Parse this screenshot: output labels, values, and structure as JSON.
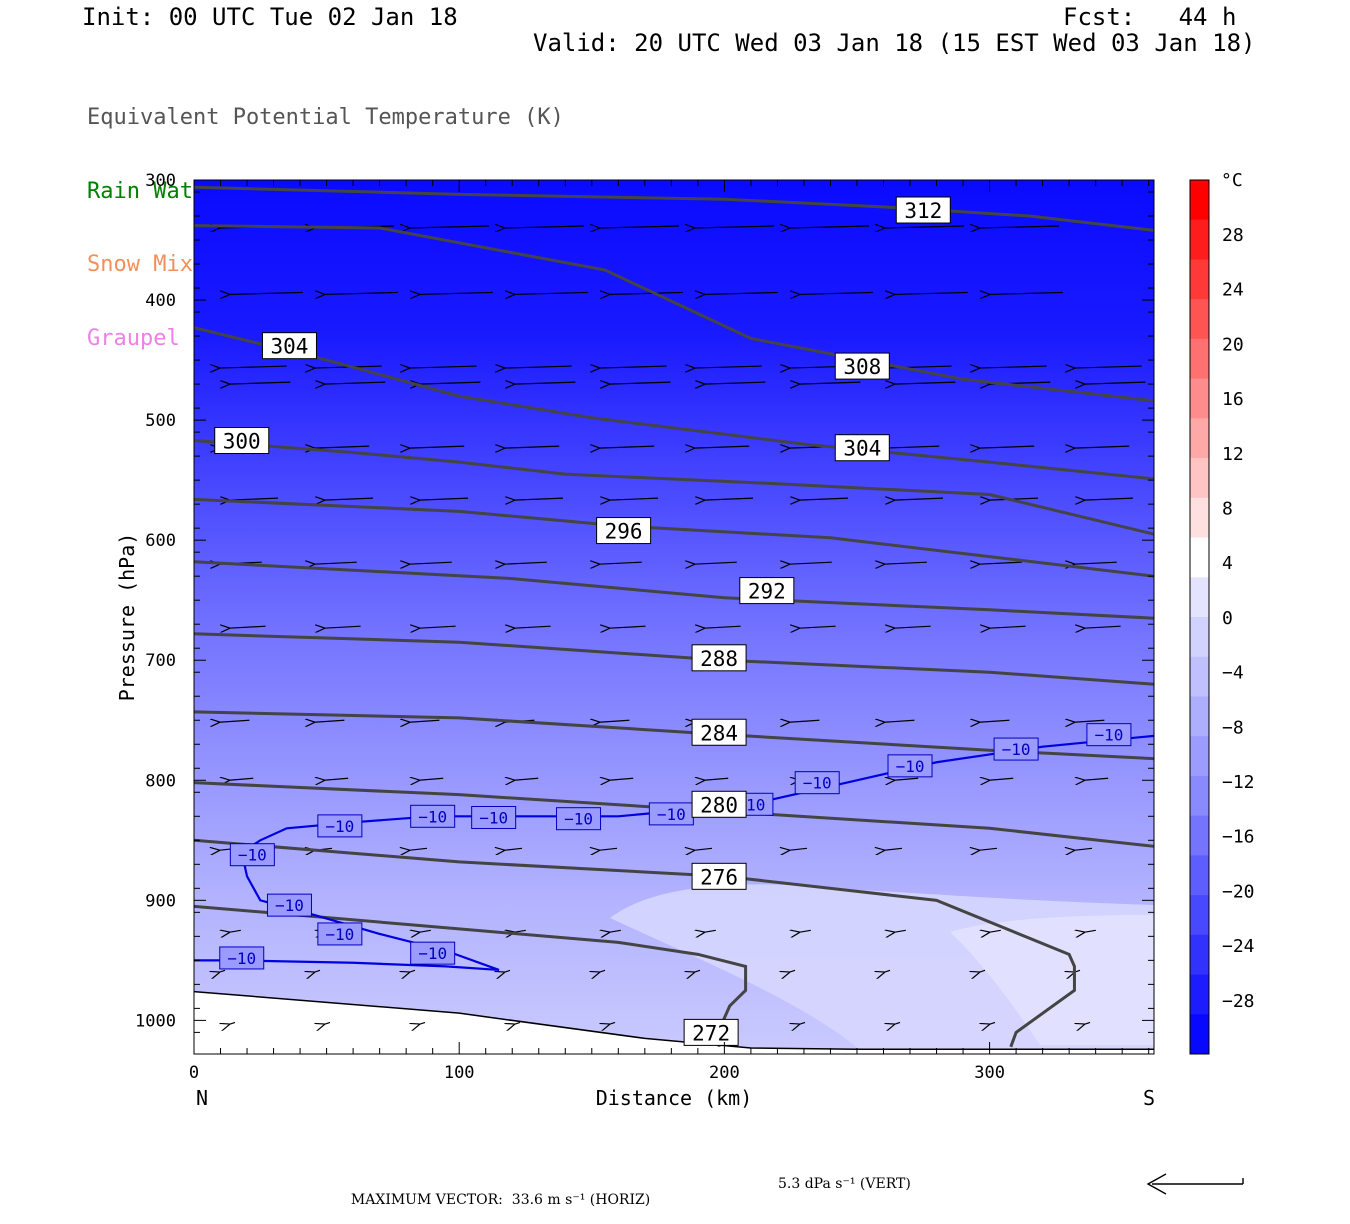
{
  "header": {
    "init": "Init: 00 UTC Tue 02 Jan 18",
    "fcst": "Fcst:   44 h",
    "valid": "Valid: 20 UTC Wed 03 Jan 18 (15 EST Wed 03 Jan 18)"
  },
  "legend": [
    {
      "label": "Equivalent Potential Temperature (K)",
      "color": "#555555"
    },
    {
      "label": "Rain Water Mixing Ratio (g/kg)",
      "color": "#008000"
    },
    {
      "label": "Snow Mixing Ratio (g/kg)",
      "color": "#f0905a"
    },
    {
      "label": "Graupel Mixing Ratio (g/kg)",
      "color": "#f080e8"
    }
  ],
  "footer": {
    "max_vector": "MAXIMUM VECTOR:  33.6 m s⁻¹ (HORIZ)",
    "vert": "5.3 dPa s⁻¹ (VERT)"
  },
  "chart_data": {
    "type": "contour",
    "xlabel": "Distance (km)",
    "ylabel": "Pressure (hPa)",
    "xlim": [
      0,
      362
    ],
    "ylim": [
      1028,
      300
    ],
    "x_ticks": [
      "0",
      "100",
      "200",
      "300"
    ],
    "y_ticks": [
      "300",
      "400",
      "500",
      "600",
      "700",
      "800",
      "900",
      "1000"
    ],
    "end_labels": {
      "left": "N",
      "right": "S"
    },
    "colorbar": {
      "unit": "°C",
      "tick_labels": [
        "28",
        "24",
        "20",
        "16",
        "12",
        "8",
        "4",
        "0",
        "−4",
        "−8",
        "−12",
        "−16",
        "−20",
        "−24",
        "−28"
      ],
      "colors": [
        "#ff0000",
        "#ff1c1c",
        "#ff3838",
        "#ff5454",
        "#ff7070",
        "#ff8c8c",
        "#ffa8a8",
        "#ffc4c4",
        "#ffe0e0",
        "#ffffff",
        "#e4e4ff",
        "#d2d2ff",
        "#c0c0ff",
        "#aeaeff",
        "#9c9cff",
        "#8a8aff",
        "#7474ff",
        "#5e5eff",
        "#4848ff",
        "#3232ff",
        "#1c1cff",
        "#0808ff"
      ]
    },
    "theta_e_contours": [
      {
        "label": "312",
        "points": [
          [
            0,
            306
          ],
          [
            100,
            312
          ],
          [
            200,
            316
          ],
          [
            265,
            323
          ],
          [
            315,
            330
          ],
          [
            362,
            342
          ]
        ],
        "label_at": [
          275,
          325
        ]
      },
      {
        "label": "308",
        "points": [
          [
            0,
            338
          ],
          [
            70,
            340
          ],
          [
            155,
            375
          ],
          [
            210,
            432
          ],
          [
            290,
            466
          ],
          [
            362,
            484
          ]
        ],
        "label_at": [
          252,
          455
        ]
      },
      {
        "label": "304",
        "points": [
          [
            0,
            423
          ],
          [
            50,
            450
          ],
          [
            100,
            480
          ],
          [
            150,
            498
          ],
          [
            230,
            520
          ],
          [
            300,
            535
          ],
          [
            362,
            549
          ]
        ],
        "label_at": [
          36,
          438
        ]
      },
      {
        "label": "304",
        "points": [],
        "label_at": [
          252,
          523
        ]
      },
      {
        "label": "300",
        "points": [
          [
            0,
            517
          ],
          [
            60,
            527
          ],
          [
            100,
            535
          ],
          [
            140,
            545
          ],
          [
            220,
            553
          ],
          [
            300,
            562
          ],
          [
            362,
            595
          ]
        ],
        "label_at": [
          18,
          517
        ]
      },
      {
        "label": "296",
        "points": [
          [
            0,
            566
          ],
          [
            100,
            576
          ],
          [
            160,
            588
          ],
          [
            240,
            598
          ],
          [
            362,
            630
          ]
        ],
        "label_at": [
          162,
          592
        ]
      },
      {
        "label": "292",
        "points": [
          [
            0,
            618
          ],
          [
            120,
            632
          ],
          [
            200,
            648
          ],
          [
            300,
            658
          ],
          [
            362,
            665
          ]
        ],
        "label_at": [
          216,
          642
        ]
      },
      {
        "label": "288",
        "points": [
          [
            0,
            678
          ],
          [
            100,
            685
          ],
          [
            200,
            700
          ],
          [
            300,
            710
          ],
          [
            362,
            720
          ]
        ],
        "label_at": [
          198,
          698
        ]
      },
      {
        "label": "284",
        "points": [
          [
            0,
            743
          ],
          [
            100,
            748
          ],
          [
            200,
            762
          ],
          [
            300,
            775
          ],
          [
            362,
            782
          ]
        ],
        "label_at": [
          198,
          760
        ]
      },
      {
        "label": "280",
        "points": [
          [
            0,
            802
          ],
          [
            100,
            812
          ],
          [
            200,
            826
          ],
          [
            300,
            840
          ],
          [
            362,
            855
          ]
        ],
        "label_at": [
          198,
          820
        ]
      },
      {
        "label": "276",
        "points": [
          [
            0,
            850
          ],
          [
            100,
            868
          ],
          [
            200,
            880
          ],
          [
            280,
            900
          ],
          [
            330,
            945
          ],
          [
            332,
            955
          ],
          [
            332,
            975
          ],
          [
            310,
            1010
          ],
          [
            308,
            1022
          ]
        ],
        "label_at": [
          198,
          880
        ]
      },
      {
        "label": "272",
        "points": [
          [
            0,
            905
          ],
          [
            80,
            920
          ],
          [
            160,
            935
          ],
          [
            190,
            945
          ],
          [
            208,
            955
          ],
          [
            208,
            975
          ],
          [
            202,
            988
          ],
          [
            198,
            1008
          ],
          [
            198,
            1022
          ]
        ],
        "label_at": [
          195,
          1010
        ]
      }
    ],
    "temperature_minus10_contour": {
      "label": "−10",
      "points": [
        [
          0,
          950
        ],
        [
          15,
          950
        ],
        [
          60,
          952
        ],
        [
          95,
          955
        ],
        [
          115,
          958
        ],
        [
          95,
          942
        ],
        [
          70,
          928
        ],
        [
          45,
          912
        ],
        [
          25,
          900
        ],
        [
          20,
          880
        ],
        [
          18,
          860
        ],
        [
          25,
          850
        ],
        [
          35,
          840
        ],
        [
          60,
          835
        ],
        [
          90,
          830
        ],
        [
          160,
          830
        ],
        [
          210,
          820
        ],
        [
          240,
          805
        ],
        [
          280,
          785
        ],
        [
          320,
          772
        ],
        [
          362,
          763
        ]
      ],
      "labels_at": [
        [
          18,
          948
        ],
        [
          22,
          862
        ],
        [
          36,
          904
        ],
        [
          55,
          928
        ],
        [
          90,
          944
        ],
        [
          55,
          838
        ],
        [
          90,
          830
        ],
        [
          113,
          831
        ],
        [
          145,
          832
        ],
        [
          180,
          828
        ],
        [
          210,
          820
        ],
        [
          235,
          802
        ],
        [
          270,
          788
        ],
        [
          310,
          774
        ],
        [
          345,
          762
        ]
      ]
    },
    "terrain_line": [
      [
        0,
        976
      ],
      [
        100,
        994
      ],
      [
        170,
        1015
      ],
      [
        210,
        1023
      ],
      [
        250,
        1024
      ],
      [
        362,
        1024
      ]
    ]
  }
}
